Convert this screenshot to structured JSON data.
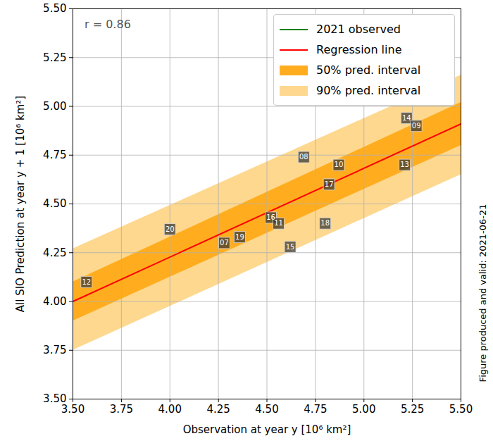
{
  "chart_data": {
    "type": "scatter",
    "x_label": "Observation at year y [10⁶ km²]",
    "y_label": "All SIO Prediction at year y + 1 [10⁶ km²]",
    "caption": "Figure produced and valid: 2021-06-21",
    "annotations": [
      {
        "text": "r = 0.86",
        "x": 3.56,
        "y": 5.42
      }
    ],
    "x": [
      3.57,
      4.0,
      4.28,
      4.36,
      4.52,
      4.56,
      4.62,
      4.69,
      4.8,
      4.82,
      4.87,
      5.21,
      5.22,
      5.27
    ],
    "values": [
      4.1,
      4.37,
      4.3,
      4.33,
      4.43,
      4.4,
      4.28,
      4.74,
      4.4,
      4.6,
      4.7,
      4.7,
      4.94,
      4.9
    ],
    "labels": [
      "12",
      "20",
      "07",
      "19",
      "16",
      "11",
      "15",
      "08",
      "18",
      "17",
      "10",
      "13",
      "14",
      "09"
    ],
    "color": "#333333",
    "marker": "square",
    "series": [
      {
        "name": "2021 observed",
        "color": "green",
        "type": "line",
        "x": [],
        "values": []
      },
      {
        "name": "Regression line",
        "color": "red",
        "type": "line",
        "x": [
          3.5,
          5.5
        ],
        "values": [
          4.0,
          4.91
        ]
      },
      {
        "name": "50% pred. interval",
        "color": "#ffad1f",
        "type": "band",
        "x": [
          3.5,
          5.5
        ],
        "lower": [
          3.9,
          4.8
        ],
        "upper": [
          4.1,
          5.02
        ]
      },
      {
        "name": "90% pred. interval",
        "color": "#fdd88e",
        "type": "band",
        "x": [
          3.5,
          5.5
        ],
        "lower": [
          3.75,
          4.65
        ],
        "upper": [
          4.27,
          5.16
        ]
      }
    ],
    "legend": "upper right",
    "grid": true,
    "xlim": [
      3.5,
      5.5
    ],
    "ylim": [
      3.5,
      5.5
    ],
    "xticks": [
      {
        "value": 3.5,
        "label": "3.50"
      },
      {
        "value": 3.75,
        "label": "3.75"
      },
      {
        "value": 4,
        "label": "4.00"
      },
      {
        "value": 4.25,
        "label": "4.25"
      },
      {
        "value": 4.5,
        "label": "4.50"
      },
      {
        "value": 4.75,
        "label": "4.75"
      },
      {
        "value": 5,
        "label": "5.00"
      },
      {
        "value": 5.25,
        "label": "5.25"
      },
      {
        "value": 5.5,
        "label": "5.50"
      }
    ],
    "yticks": [
      {
        "value": 3.5,
        "label": "3.50"
      },
      {
        "value": 3.75,
        "label": "3.75"
      },
      {
        "value": 4,
        "label": "4.00"
      },
      {
        "value": 4.25,
        "label": "4.25"
      },
      {
        "value": 4.5,
        "label": "4.50"
      },
      {
        "value": 4.75,
        "label": "4.75"
      },
      {
        "value": 5,
        "label": "5.00"
      },
      {
        "value": 5.25,
        "label": "5.25"
      },
      {
        "value": 5.5,
        "label": "5.50"
      }
    ]
  }
}
